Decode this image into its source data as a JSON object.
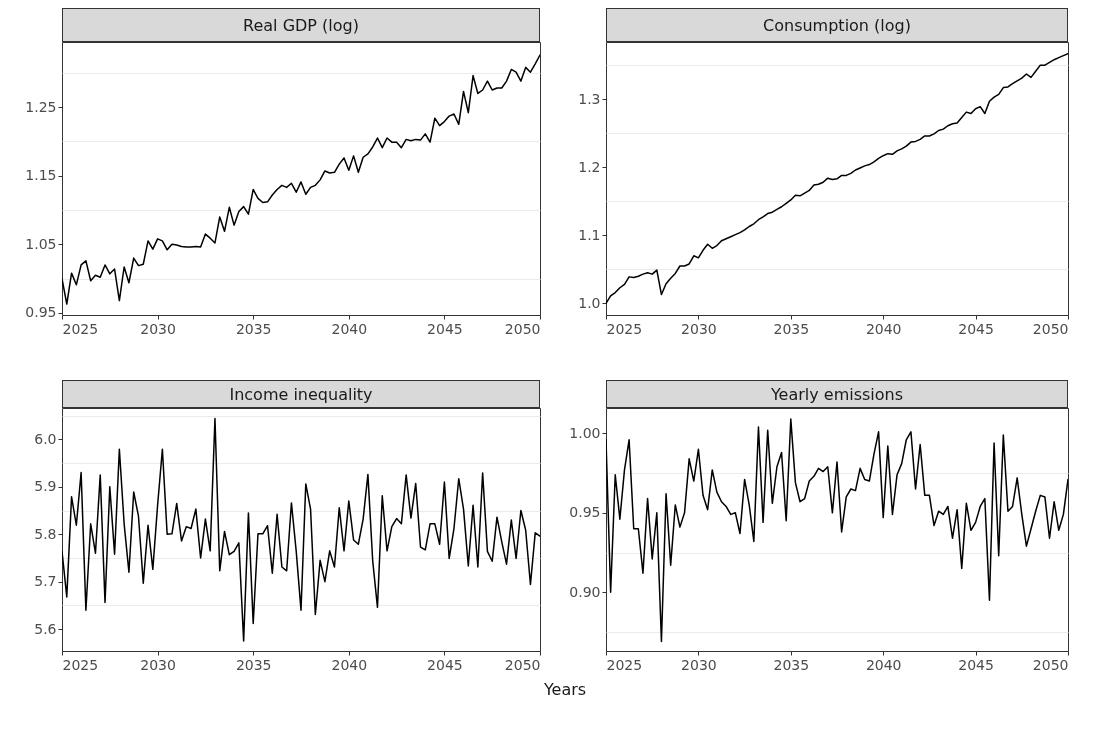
{
  "chart_data": [
    {
      "type": "line",
      "title": "Real GDP (log)",
      "grid": "y",
      "line_style": "solid",
      "xlim": [
        2025,
        2050
      ],
      "xticks": [
        2025,
        2030,
        2035,
        2040,
        2045,
        2050
      ],
      "ylim": [
        0.947,
        1.345
      ],
      "yticks": [
        0.95,
        {
          "value": 1.0,
          "label": null
        },
        1.05,
        {
          "value": 1.1,
          "label": null
        },
        1.15,
        {
          "value": 1.2,
          "label": null
        },
        1.25,
        {
          "value": 1.3,
          "label": null
        }
      ],
      "x": [
        2025,
        2025.25,
        2025.5,
        2025.75,
        2026,
        2026.25,
        2026.5,
        2026.75,
        2027,
        2027.25,
        2027.5,
        2027.75,
        2028,
        2028.25,
        2028.5,
        2028.75,
        2029,
        2029.25,
        2029.5,
        2029.75,
        2030,
        2030.25,
        2030.5,
        2030.75,
        2031,
        2031.25,
        2031.5,
        2031.75,
        2032,
        2032.25,
        2032.5,
        2032.75,
        2033,
        2033.25,
        2033.5,
        2033.75,
        2034,
        2034.25,
        2034.5,
        2034.75,
        2035,
        2035.25,
        2035.5,
        2035.75,
        2036,
        2036.25,
        2036.5,
        2036.75,
        2037,
        2037.25,
        2037.5,
        2037.75,
        2038,
        2038.25,
        2038.5,
        2038.75,
        2039,
        2039.25,
        2039.5,
        2039.75,
        2040,
        2040.25,
        2040.5,
        2040.75,
        2041,
        2041.25,
        2041.5,
        2041.75,
        2042,
        2042.25,
        2042.5,
        2042.75,
        2043,
        2043.25,
        2043.5,
        2043.75,
        2044,
        2044.25,
        2044.5,
        2044.75,
        2045,
        2045.25,
        2045.5,
        2045.75,
        2046,
        2046.25,
        2046.5,
        2046.75,
        2047,
        2047.25,
        2047.5,
        2047.75,
        2048,
        2048.25,
        2048.5,
        2048.75,
        2049,
        2049.25,
        2049.5,
        2049.75,
        2050
      ],
      "series": [
        {
          "color": "#000000",
          "values": [
            1.0,
            0.963,
            1.008,
            0.991,
            1.02,
            1.026,
            0.997,
            1.005,
            1.002,
            1.02,
            1.007,
            1.014,
            0.968,
            1.017,
            0.994,
            1.03,
            1.019,
            1.021,
            1.055,
            1.043,
            1.058,
            1.055,
            1.042,
            1.05,
            1.049,
            1.047,
            1.046,
            1.046,
            1.047,
            1.046,
            1.065,
            1.059,
            1.052,
            1.09,
            1.069,
            1.104,
            1.078,
            1.098,
            1.105,
            1.094,
            1.13,
            1.117,
            1.111,
            1.112,
            1.122,
            1.13,
            1.136,
            1.133,
            1.139,
            1.126,
            1.141,
            1.123,
            1.133,
            1.136,
            1.144,
            1.157,
            1.154,
            1.155,
            1.167,
            1.176,
            1.158,
            1.179,
            1.155,
            1.177,
            1.182,
            1.192,
            1.205,
            1.191,
            1.205,
            1.199,
            1.199,
            1.191,
            1.203,
            1.201,
            1.203,
            1.202,
            1.211,
            1.199,
            1.234,
            1.223,
            1.229,
            1.237,
            1.24,
            1.225,
            1.273,
            1.242,
            1.296,
            1.27,
            1.275,
            1.288,
            1.275,
            1.278,
            1.278,
            1.288,
            1.305,
            1.301,
            1.288,
            1.308,
            1.301,
            1.313,
            1.326
          ]
        }
      ]
    },
    {
      "type": "line",
      "title": "Consumption (log)",
      "grid": "y",
      "line_style": "solid",
      "xlim": [
        2025,
        2050
      ],
      "xticks": [
        2025,
        2030,
        2035,
        2040,
        2045,
        2050
      ],
      "ylim": [
        0.983,
        1.384
      ],
      "yticks": [
        {
          "value": 1.0,
          "label": "1.0"
        },
        {
          "value": 1.05,
          "label": null
        },
        1.1,
        {
          "value": 1.15,
          "label": null
        },
        1.2,
        {
          "value": 1.25,
          "label": null
        },
        1.3,
        {
          "value": 1.35,
          "label": null
        }
      ],
      "x": [
        2025,
        2025.25,
        2025.5,
        2025.75,
        2026,
        2026.25,
        2026.5,
        2026.75,
        2027,
        2027.25,
        2027.5,
        2027.75,
        2028,
        2028.25,
        2028.5,
        2028.75,
        2029,
        2029.25,
        2029.5,
        2029.75,
        2030,
        2030.25,
        2030.5,
        2030.75,
        2031,
        2031.25,
        2031.5,
        2031.75,
        2032,
        2032.25,
        2032.5,
        2032.75,
        2033,
        2033.25,
        2033.5,
        2033.75,
        2034,
        2034.25,
        2034.5,
        2034.75,
        2035,
        2035.25,
        2035.5,
        2035.75,
        2036,
        2036.25,
        2036.5,
        2036.75,
        2037,
        2037.25,
        2037.5,
        2037.75,
        2038,
        2038.25,
        2038.5,
        2038.75,
        2039,
        2039.25,
        2039.5,
        2039.75,
        2040,
        2040.25,
        2040.5,
        2040.75,
        2041,
        2041.25,
        2041.5,
        2041.75,
        2042,
        2042.25,
        2042.5,
        2042.75,
        2043,
        2043.25,
        2043.5,
        2043.75,
        2044,
        2044.25,
        2044.5,
        2044.75,
        2045,
        2045.25,
        2045.5,
        2045.75,
        2046,
        2046.25,
        2046.5,
        2046.75,
        2047,
        2047.25,
        2047.5,
        2047.75,
        2048,
        2048.25,
        2048.5,
        2048.75,
        2049,
        2049.25,
        2049.5,
        2049.75,
        2050
      ],
      "series": [
        {
          "color": "#000000",
          "values": [
            1.0,
            1.011,
            1.016,
            1.023,
            1.028,
            1.039,
            1.038,
            1.04,
            1.043,
            1.045,
            1.043,
            1.049,
            1.013,
            1.029,
            1.037,
            1.044,
            1.055,
            1.055,
            1.058,
            1.07,
            1.067,
            1.078,
            1.087,
            1.081,
            1.085,
            1.092,
            1.095,
            1.098,
            1.101,
            1.104,
            1.108,
            1.113,
            1.117,
            1.123,
            1.127,
            1.132,
            1.134,
            1.138,
            1.142,
            1.147,
            1.152,
            1.159,
            1.158,
            1.162,
            1.166,
            1.174,
            1.175,
            1.178,
            1.184,
            1.182,
            1.183,
            1.188,
            1.188,
            1.191,
            1.196,
            1.199,
            1.202,
            1.204,
            1.208,
            1.213,
            1.217,
            1.22,
            1.219,
            1.224,
            1.227,
            1.231,
            1.237,
            1.238,
            1.241,
            1.246,
            1.246,
            1.249,
            1.254,
            1.256,
            1.261,
            1.264,
            1.265,
            1.273,
            1.281,
            1.279,
            1.286,
            1.289,
            1.279,
            1.297,
            1.303,
            1.307,
            1.317,
            1.318,
            1.323,
            1.327,
            1.331,
            1.337,
            1.332,
            1.341,
            1.35,
            1.35,
            1.354,
            1.358,
            1.361,
            1.364,
            1.367
          ]
        }
      ]
    },
    {
      "type": "line",
      "title": "Income inequality",
      "grid": "y",
      "line_style": "solid",
      "xlim": [
        2025,
        2050
      ],
      "xticks": [
        2025,
        2030,
        2035,
        2040,
        2045,
        2050
      ],
      "ylim": [
        5.554,
        6.066
      ],
      "yticks": [
        5.6,
        {
          "value": 5.65,
          "label": null
        },
        5.7,
        {
          "value": 5.75,
          "label": null
        },
        5.8,
        {
          "value": 5.85,
          "label": null
        },
        5.9,
        {
          "value": 5.95,
          "label": null
        },
        {
          "value": 6.0,
          "label": "6.0"
        },
        {
          "value": 6.05,
          "label": null
        }
      ],
      "x": [
        2025,
        2025.25,
        2025.5,
        2025.75,
        2026,
        2026.25,
        2026.5,
        2026.75,
        2027,
        2027.25,
        2027.5,
        2027.75,
        2028,
        2028.25,
        2028.5,
        2028.75,
        2029,
        2029.25,
        2029.5,
        2029.75,
        2030,
        2030.25,
        2030.5,
        2030.75,
        2031,
        2031.25,
        2031.5,
        2031.75,
        2032,
        2032.25,
        2032.5,
        2032.75,
        2033,
        2033.25,
        2033.5,
        2033.75,
        2034,
        2034.25,
        2034.5,
        2034.75,
        2035,
        2035.25,
        2035.5,
        2035.75,
        2036,
        2036.25,
        2036.5,
        2036.75,
        2037,
        2037.25,
        2037.5,
        2037.75,
        2038,
        2038.25,
        2038.5,
        2038.75,
        2039,
        2039.25,
        2039.5,
        2039.75,
        2040,
        2040.25,
        2040.5,
        2040.75,
        2041,
        2041.25,
        2041.5,
        2041.75,
        2042,
        2042.25,
        2042.5,
        2042.75,
        2043,
        2043.25,
        2043.5,
        2043.75,
        2044,
        2044.25,
        2044.5,
        2044.75,
        2045,
        2045.25,
        2045.5,
        2045.75,
        2046,
        2046.25,
        2046.5,
        2046.75,
        2047,
        2047.25,
        2047.5,
        2047.75,
        2048,
        2048.25,
        2048.5,
        2048.75,
        2049,
        2049.25,
        2049.5,
        2049.75,
        2050
      ],
      "series": [
        {
          "color": "#000000",
          "values": [
            5.764,
            5.668,
            5.879,
            5.819,
            5.93,
            5.64,
            5.822,
            5.76,
            5.925,
            5.656,
            5.9,
            5.758,
            5.979,
            5.822,
            5.72,
            5.889,
            5.838,
            5.697,
            5.819,
            5.726,
            5.861,
            5.979,
            5.8,
            5.801,
            5.865,
            5.786,
            5.816,
            5.812,
            5.853,
            5.75,
            5.832,
            5.765,
            6.044,
            5.723,
            5.806,
            5.757,
            5.764,
            5.782,
            5.575,
            5.845,
            5.612,
            5.801,
            5.801,
            5.818,
            5.718,
            5.842,
            5.731,
            5.723,
            5.866,
            5.764,
            5.64,
            5.906,
            5.853,
            5.631,
            5.745,
            5.7,
            5.765,
            5.731,
            5.856,
            5.765,
            5.87,
            5.788,
            5.779,
            5.832,
            5.926,
            5.744,
            5.646,
            5.881,
            5.765,
            5.816,
            5.833,
            5.822,
            5.925,
            5.834,
            5.907,
            5.773,
            5.767,
            5.822,
            5.822,
            5.779,
            5.91,
            5.749,
            5.812,
            5.917,
            5.853,
            5.733,
            5.861,
            5.731,
            5.929,
            5.764,
            5.743,
            5.836,
            5.784,
            5.737,
            5.83,
            5.749,
            5.85,
            5.809,
            5.694,
            5.803,
            5.796
          ]
        }
      ]
    },
    {
      "type": "line",
      "title": "Yearly emissions",
      "xlabel": "Years",
      "grid": "y",
      "line_style": "solid",
      "xlim": [
        2025,
        2050
      ],
      "xticks": [
        2025,
        2030,
        2035,
        2040,
        2045,
        2050
      ],
      "ylim": [
        0.863,
        1.016
      ],
      "yticks": [
        {
          "value": 0.875,
          "label": null
        },
        {
          "value": 0.9,
          "label": "0.90"
        },
        {
          "value": 0.925,
          "label": null
        },
        0.95,
        {
          "value": 0.975,
          "label": null
        },
        {
          "value": 1.0,
          "label": "1.00"
        }
      ],
      "x": [
        2025,
        2025.25,
        2025.5,
        2025.75,
        2026,
        2026.25,
        2026.5,
        2026.75,
        2027,
        2027.25,
        2027.5,
        2027.75,
        2028,
        2028.25,
        2028.5,
        2028.75,
        2029,
        2029.25,
        2029.5,
        2029.75,
        2030,
        2030.25,
        2030.5,
        2030.75,
        2031,
        2031.25,
        2031.5,
        2031.75,
        2032,
        2032.25,
        2032.5,
        2032.75,
        2033,
        2033.25,
        2033.5,
        2033.75,
        2034,
        2034.25,
        2034.5,
        2034.75,
        2035,
        2035.25,
        2035.5,
        2035.75,
        2036,
        2036.25,
        2036.5,
        2036.75,
        2037,
        2037.25,
        2037.5,
        2037.75,
        2038,
        2038.25,
        2038.5,
        2038.75,
        2039,
        2039.25,
        2039.5,
        2039.75,
        2040,
        2040.25,
        2040.5,
        2040.75,
        2041,
        2041.25,
        2041.5,
        2041.75,
        2042,
        2042.25,
        2042.5,
        2042.75,
        2043,
        2043.25,
        2043.5,
        2043.75,
        2044,
        2044.25,
        2044.5,
        2044.75,
        2045,
        2045.25,
        2045.5,
        2045.75,
        2046,
        2046.25,
        2046.5,
        2046.75,
        2047,
        2047.25,
        2047.5,
        2047.75,
        2048,
        2048.25,
        2048.5,
        2048.75,
        2049,
        2049.25,
        2049.5,
        2049.75,
        2050
      ],
      "series": [
        {
          "color": "#000000",
          "values": [
            0.996,
            0.9,
            0.974,
            0.946,
            0.977,
            0.996,
            0.94,
            0.94,
            0.912,
            0.959,
            0.921,
            0.95,
            0.869,
            0.962,
            0.917,
            0.955,
            0.941,
            0.95,
            0.984,
            0.97,
            0.99,
            0.961,
            0.952,
            0.977,
            0.963,
            0.957,
            0.954,
            0.949,
            0.95,
            0.937,
            0.971,
            0.955,
            0.932,
            1.004,
            0.944,
            1.002,
            0.956,
            0.979,
            0.988,
            0.945,
            1.009,
            0.969,
            0.957,
            0.959,
            0.97,
            0.973,
            0.978,
            0.976,
            0.979,
            0.95,
            0.982,
            0.938,
            0.96,
            0.965,
            0.964,
            0.978,
            0.971,
            0.97,
            0.987,
            1.001,
            0.947,
            0.992,
            0.949,
            0.974,
            0.981,
            0.996,
            1.001,
            0.965,
            0.993,
            0.961,
            0.961,
            0.942,
            0.951,
            0.949,
            0.954,
            0.934,
            0.952,
            0.915,
            0.956,
            0.939,
            0.944,
            0.954,
            0.959,
            0.895,
            0.994,
            0.923,
            0.999,
            0.951,
            0.954,
            0.972,
            0.949,
            0.929,
            0.94,
            0.951,
            0.961,
            0.96,
            0.934,
            0.957,
            0.939,
            0.949,
            0.971
          ]
        }
      ]
    }
  ]
}
